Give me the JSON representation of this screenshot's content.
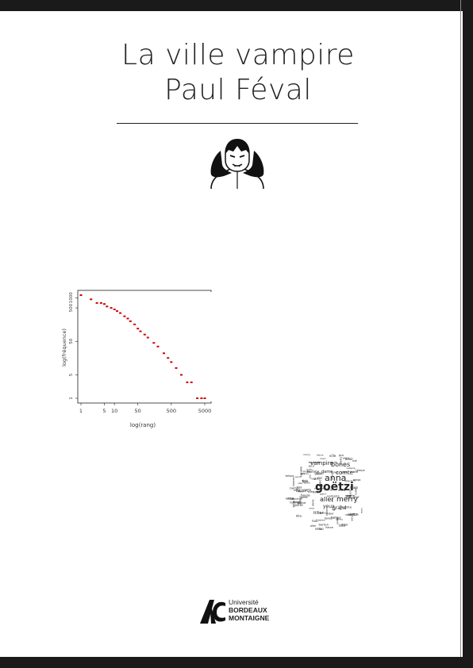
{
  "cover": {
    "title": "La ville vampire",
    "author": "Paul Féval"
  },
  "illustration": {
    "icon": "vampire-icon"
  },
  "chart_data": {
    "type": "scatter",
    "title": "",
    "xlabel": "log(rang)",
    "ylabel": "log(fréquence)",
    "x_scale": "log",
    "y_scale": "log",
    "x_ticks": [
      "1",
      "5",
      "10",
      "50",
      "500",
      "5000"
    ],
    "y_ticks": [
      "1",
      "5",
      "50",
      "500",
      "1000"
    ],
    "color": "#d40000",
    "series": [
      {
        "x": [
          1,
          2,
          3,
          4,
          5,
          6,
          8,
          10,
          12,
          15,
          20,
          25,
          30,
          40,
          50,
          60,
          80,
          100,
          150,
          200,
          300,
          400,
          500,
          700,
          1000,
          1500,
          2000,
          3000,
          4000,
          5000
        ],
        "y": [
          1200,
          900,
          700,
          700,
          650,
          550,
          500,
          450,
          400,
          350,
          280,
          240,
          200,
          160,
          120,
          100,
          80,
          65,
          45,
          35,
          22,
          16,
          12,
          8,
          5,
          3,
          3,
          1,
          1,
          1
        ]
      }
    ]
  },
  "wordcloud": {
    "words": [
      "goëtzi",
      "anna",
      "merry",
      "aller",
      "bones",
      "vampire",
      "comte",
      "grand",
      "tillier",
      "dame",
      "yeux",
      "heure",
      "main",
      "nuit",
      "porte",
      "ville",
      "homme",
      "lettre",
      "barton",
      "temps",
      "avoir",
      "jour",
      "fois",
      "tête",
      "selon"
    ]
  },
  "logo": {
    "line1": "Université",
    "line2": "BORDEAUX",
    "line3": "MONTAIGNE"
  }
}
